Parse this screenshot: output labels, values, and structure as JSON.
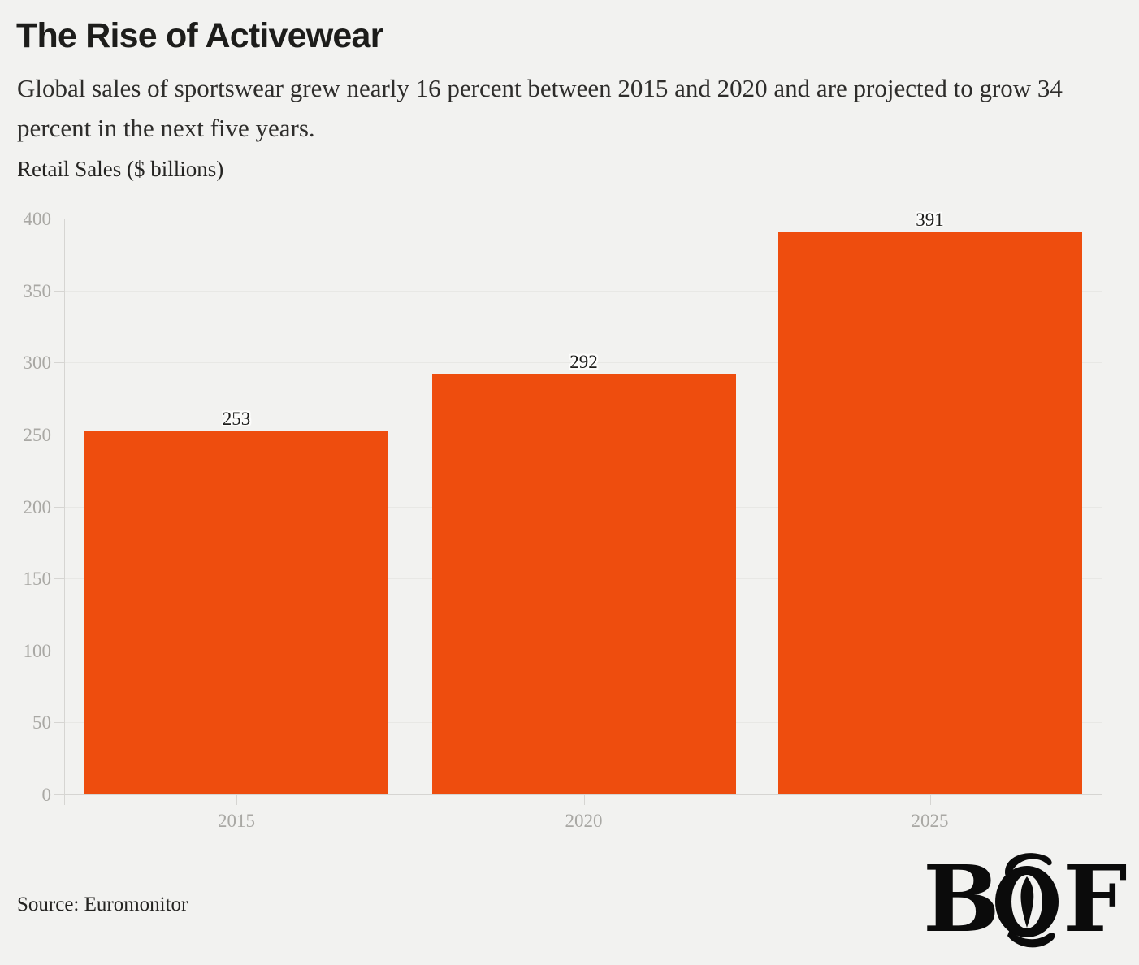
{
  "header": {
    "title": "The Rise of Activewear",
    "subtitle": "Global sales of sportswear grew nearly 16 percent between 2015 and 2020 and are projected to grow 34 percent in the next five years.",
    "units_label": "Retail Sales ($ billions)"
  },
  "chart_data": {
    "type": "bar",
    "categories": [
      "2015",
      "2020",
      "2025"
    ],
    "values": [
      253,
      292,
      391
    ],
    "bar_labels": [
      "253",
      "292",
      "391"
    ],
    "title": "The Rise of Activewear",
    "xlabel": "",
    "ylabel": "Retail Sales ($ billions)",
    "ylim": [
      0,
      400
    ],
    "yticks": [
      0,
      50,
      100,
      150,
      200,
      250,
      300,
      350,
      400
    ],
    "grid": "horizontal",
    "legend": "none",
    "bar_color": "#EE4D0E",
    "background_color": "#F2F2F0",
    "gridline_color": "#E8E8E5",
    "axis_color": "#D6D5D2",
    "tick_label_color": "#A9A8A4",
    "value_label_color": "#1D1D1B"
  },
  "footer": {
    "source": "Source: Euromonitor",
    "logo_letter_b": "B",
    "logo_letter_f": "F"
  }
}
